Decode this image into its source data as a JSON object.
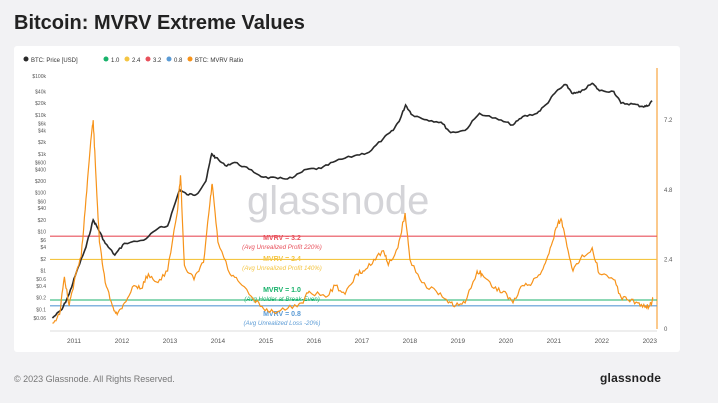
{
  "title": "Bitcoin: MVRV Extreme Values",
  "watermark": "glassnode",
  "footer": {
    "copyright": "© 2023 Glassnode. All Rights Reserved.",
    "brand": "glassnode"
  },
  "colors": {
    "price": "#2a2a2a",
    "mvrv": "#f7931a",
    "l10": "#18b26b",
    "l24": "#f4c542",
    "l32": "#e8505b",
    "l08": "#5b9bd5"
  },
  "chart_data": {
    "type": "line",
    "legend": [
      {
        "label": "BTC: Price [USD]",
        "color": "#2a2a2a"
      },
      {
        "label": "1.0",
        "color": "#18b26b"
      },
      {
        "label": "2.4",
        "color": "#f4c542"
      },
      {
        "label": "3.2",
        "color": "#e8505b"
      },
      {
        "label": "0.8",
        "color": "#5b9bd5"
      },
      {
        "label": "BTC: MVRV Ratio",
        "color": "#f7931a"
      }
    ],
    "x_ticks": [
      "2011",
      "2012",
      "2013",
      "2014",
      "2015",
      "2016",
      "2017",
      "2018",
      "2019",
      "2020",
      "2021",
      "2022",
      "2023"
    ],
    "y_left_ticks": [
      "$0.06",
      "$0.1",
      "$0.2",
      "$0.4",
      "$0.6",
      "$1",
      "$2",
      "$4",
      "$6",
      "$10",
      "$20",
      "$40",
      "$60",
      "$100",
      "$200",
      "$400",
      "$600",
      "$1k",
      "$2k",
      "$4k",
      "$6k",
      "$10k",
      "$20k",
      "$40k",
      "$100k"
    ],
    "y_right_ticks": [
      "0",
      "2.4",
      "4.8",
      "7.2"
    ],
    "y_right_range": [
      0,
      9
    ],
    "levels": [
      {
        "value": 3.2,
        "label": "MVRV = 3.2",
        "sublabel": "(Avg Unrealized Profit 220%)",
        "color": "#e8505b"
      },
      {
        "value": 2.4,
        "label": "MVRV = 2.4",
        "sublabel": "(Avg Unrealized Profit 140%)",
        "color": "#f4c542"
      },
      {
        "value": 1.0,
        "label": "MVRV = 1.0",
        "sublabel": "(Avg Holder at Break-Even)",
        "color": "#18b26b"
      },
      {
        "value": 0.8,
        "label": "MVRV = 0.8",
        "sublabel": "(Avg Unrealized Loss -20%)",
        "color": "#5b9bd5"
      }
    ],
    "price_series": [
      [
        2010.6,
        0.06
      ],
      [
        2010.8,
        0.1
      ],
      [
        2010.95,
        0.25
      ],
      [
        2011.1,
        0.9
      ],
      [
        2011.3,
        4
      ],
      [
        2011.45,
        20
      ],
      [
        2011.55,
        12
      ],
      [
        2011.7,
        5
      ],
      [
        2011.9,
        2.5
      ],
      [
        2012.1,
        5
      ],
      [
        2012.5,
        6
      ],
      [
        2012.8,
        12
      ],
      [
        2013.0,
        14
      ],
      [
        2013.25,
        120
      ],
      [
        2013.4,
        90
      ],
      [
        2013.6,
        90
      ],
      [
        2013.8,
        200
      ],
      [
        2013.92,
        1000
      ],
      [
        2014.0,
        800
      ],
      [
        2014.2,
        500
      ],
      [
        2014.4,
        600
      ],
      [
        2014.7,
        400
      ],
      [
        2015.0,
        250
      ],
      [
        2015.3,
        230
      ],
      [
        2015.6,
        240
      ],
      [
        2015.9,
        400
      ],
      [
        2016.2,
        420
      ],
      [
        2016.5,
        650
      ],
      [
        2016.9,
        900
      ],
      [
        2017.2,
        1100
      ],
      [
        2017.5,
        2500
      ],
      [
        2017.7,
        4000
      ],
      [
        2017.85,
        8000
      ],
      [
        2017.96,
        18000
      ],
      [
        2018.1,
        10000
      ],
      [
        2018.4,
        7500
      ],
      [
        2018.7,
        6500
      ],
      [
        2018.9,
        3500
      ],
      [
        2019.2,
        4000
      ],
      [
        2019.5,
        11000
      ],
      [
        2019.9,
        7500
      ],
      [
        2020.2,
        5500
      ],
      [
        2020.4,
        9000
      ],
      [
        2020.7,
        11000
      ],
      [
        2020.9,
        19000
      ],
      [
        2021.1,
        40000
      ],
      [
        2021.3,
        60000
      ],
      [
        2021.45,
        35000
      ],
      [
        2021.6,
        38000
      ],
      [
        2021.85,
        65000
      ],
      [
        2022.0,
        42000
      ],
      [
        2022.3,
        40000
      ],
      [
        2022.45,
        20000
      ],
      [
        2022.7,
        19000
      ],
      [
        2022.9,
        16500
      ],
      [
        2023.0,
        16800
      ],
      [
        2023.1,
        23000
      ]
    ],
    "mvrv_series": [
      [
        2010.6,
        0.2
      ],
      [
        2010.75,
        0.5
      ],
      [
        2010.85,
        1.8
      ],
      [
        2010.95,
        0.8
      ],
      [
        2011.05,
        1.6
      ],
      [
        2011.2,
        2.5
      ],
      [
        2011.3,
        4.5
      ],
      [
        2011.4,
        6.5
      ],
      [
        2011.45,
        7.2
      ],
      [
        2011.5,
        5.5
      ],
      [
        2011.58,
        3.0
      ],
      [
        2011.7,
        1.6
      ],
      [
        2011.85,
        0.8
      ],
      [
        2011.95,
        0.5
      ],
      [
        2012.1,
        0.9
      ],
      [
        2012.3,
        1.5
      ],
      [
        2012.45,
        1.4
      ],
      [
        2012.6,
        1.9
      ],
      [
        2012.8,
        1.6
      ],
      [
        2013.0,
        2.0
      ],
      [
        2013.2,
        4.0
      ],
      [
        2013.27,
        5.3
      ],
      [
        2013.35,
        2.2
      ],
      [
        2013.55,
        1.7
      ],
      [
        2013.75,
        2.3
      ],
      [
        2013.88,
        4.3
      ],
      [
        2013.93,
        5.0
      ],
      [
        2014.05,
        3.0
      ],
      [
        2014.3,
        1.9
      ],
      [
        2014.5,
        1.6
      ],
      [
        2014.8,
        1.0
      ],
      [
        2015.0,
        0.7
      ],
      [
        2015.2,
        0.6
      ],
      [
        2015.5,
        0.7
      ],
      [
        2015.8,
        0.9
      ],
      [
        2015.95,
        1.3
      ],
      [
        2016.3,
        1.1
      ],
      [
        2016.5,
        1.5
      ],
      [
        2016.7,
        1.2
      ],
      [
        2016.95,
        1.9
      ],
      [
        2017.1,
        2.0
      ],
      [
        2017.3,
        2.4
      ],
      [
        2017.5,
        2.7
      ],
      [
        2017.6,
        2.2
      ],
      [
        2017.8,
        2.8
      ],
      [
        2017.95,
        4.0
      ],
      [
        2018.05,
        2.4
      ],
      [
        2018.3,
        1.6
      ],
      [
        2018.6,
        1.3
      ],
      [
        2018.85,
        0.9
      ],
      [
        2019.0,
        0.8
      ],
      [
        2019.2,
        0.9
      ],
      [
        2019.45,
        2.0
      ],
      [
        2019.55,
        1.9
      ],
      [
        2019.8,
        1.4
      ],
      [
        2020.0,
        1.3
      ],
      [
        2020.2,
        0.9
      ],
      [
        2020.4,
        1.5
      ],
      [
        2020.6,
        1.6
      ],
      [
        2020.8,
        2.0
      ],
      [
        2020.95,
        2.6
      ],
      [
        2021.1,
        3.5
      ],
      [
        2021.2,
        3.8
      ],
      [
        2021.3,
        3.1
      ],
      [
        2021.45,
        2.0
      ],
      [
        2021.6,
        2.4
      ],
      [
        2021.85,
        2.8
      ],
      [
        2022.0,
        1.9
      ],
      [
        2022.3,
        1.7
      ],
      [
        2022.45,
        1.1
      ],
      [
        2022.6,
        1.0
      ],
      [
        2022.8,
        0.9
      ],
      [
        2022.95,
        0.75
      ],
      [
        2023.05,
        0.8
      ],
      [
        2023.12,
        1.05
      ]
    ]
  }
}
